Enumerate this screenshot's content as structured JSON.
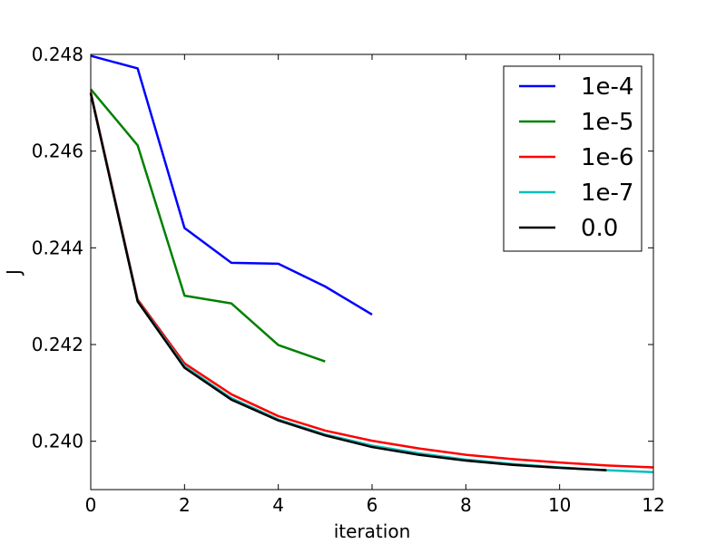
{
  "chart_data": {
    "type": "line",
    "xlabel": "iteration",
    "ylabel": "J",
    "xlim": [
      0,
      12
    ],
    "ylim": [
      0.239,
      0.248
    ],
    "xticks": [
      0,
      2,
      4,
      6,
      8,
      10,
      12
    ],
    "xtick_labels": [
      "0",
      "2",
      "4",
      "6",
      "8",
      "10",
      "12"
    ],
    "yticks": [
      0.24,
      0.242,
      0.244,
      0.246,
      0.248
    ],
    "ytick_labels": [
      "0.240",
      "0.242",
      "0.244",
      "0.246",
      "0.248"
    ],
    "grid": false,
    "legend_position": "top-right",
    "series": [
      {
        "name": "1e-4",
        "color": "#0000ff",
        "x": [
          0,
          1,
          2,
          3,
          4,
          5,
          6
        ],
        "y": [
          0.24797,
          0.24771,
          0.24441,
          0.24369,
          0.24367,
          0.2432,
          0.24262
        ]
      },
      {
        "name": "1e-5",
        "color": "#008000",
        "x": [
          0,
          1,
          2,
          3,
          4,
          5
        ],
        "y": [
          0.24728,
          0.24612,
          0.24301,
          0.24285,
          0.24199,
          0.24165
        ]
      },
      {
        "name": "1e-6",
        "color": "#ff0000",
        "x": [
          0,
          1,
          2,
          3,
          4,
          5,
          6,
          7,
          8,
          9,
          10,
          11,
          12
        ],
        "y": [
          0.24722,
          0.24293,
          0.24161,
          0.24097,
          0.24052,
          0.24022,
          0.24001,
          0.23985,
          0.23972,
          0.23963,
          0.23956,
          0.2395,
          0.23946
        ]
      },
      {
        "name": "1e-7",
        "color": "#00bfbf",
        "x": [
          0,
          1,
          2,
          3,
          4,
          5,
          6,
          7,
          8,
          9,
          10,
          11,
          12
        ],
        "y": [
          0.2472,
          0.2429,
          0.24155,
          0.24089,
          0.24045,
          0.24014,
          0.23991,
          0.23975,
          0.23962,
          0.23953,
          0.23946,
          0.2394,
          0.23936
        ]
      },
      {
        "name": "0.0",
        "color": "#000000",
        "x": [
          0,
          1,
          2,
          3,
          4,
          5,
          6,
          7,
          8,
          9,
          10,
          11
        ],
        "y": [
          0.24719,
          0.24289,
          0.24152,
          0.24086,
          0.24043,
          0.24012,
          0.23988,
          0.23972,
          0.2396,
          0.23951,
          0.23945,
          0.2394
        ]
      }
    ]
  }
}
